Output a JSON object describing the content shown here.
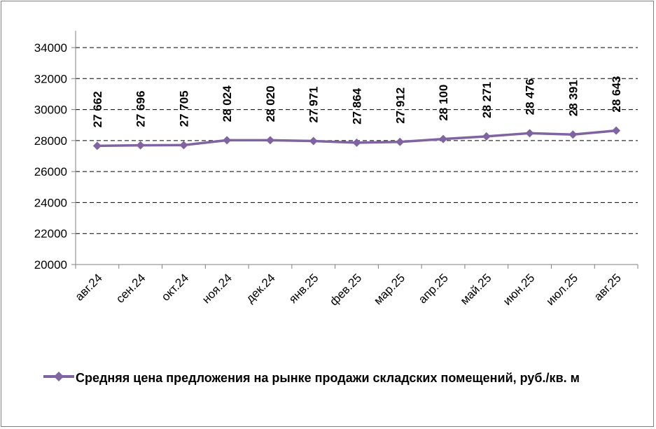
{
  "chart_data": {
    "type": "line",
    "categories": [
      "авг.24",
      "сен.24",
      "окт.24",
      "ноя.24",
      "дек.24",
      "янв.25",
      "фев.25",
      "мар.25",
      "апр.25",
      "май.25",
      "июн.25",
      "июл.25",
      "авг.25"
    ],
    "series": [
      {
        "name": "Средняя цена предложения на рынке продажи складских помещений, руб./кв. м",
        "values": [
          27662,
          27696,
          27705,
          28024,
          28020,
          27971,
          27864,
          27912,
          28100,
          28271,
          28476,
          28391,
          28643
        ],
        "data_labels": [
          "27 662",
          "27 696",
          "27 705",
          "28 024",
          "28 020",
          "27 971",
          "27 864",
          "27 912",
          "28 100",
          "28 271",
          "28 476",
          "28 391",
          "28 643"
        ]
      }
    ],
    "ylim": [
      20000,
      34000
    ],
    "yticks": [
      "20000",
      "22000",
      "24000",
      "26000",
      "28000",
      "30000",
      "32000",
      "34000"
    ],
    "grid": "horizontal dashed",
    "legend_position": "bottom",
    "line_color": "#8064a2"
  }
}
